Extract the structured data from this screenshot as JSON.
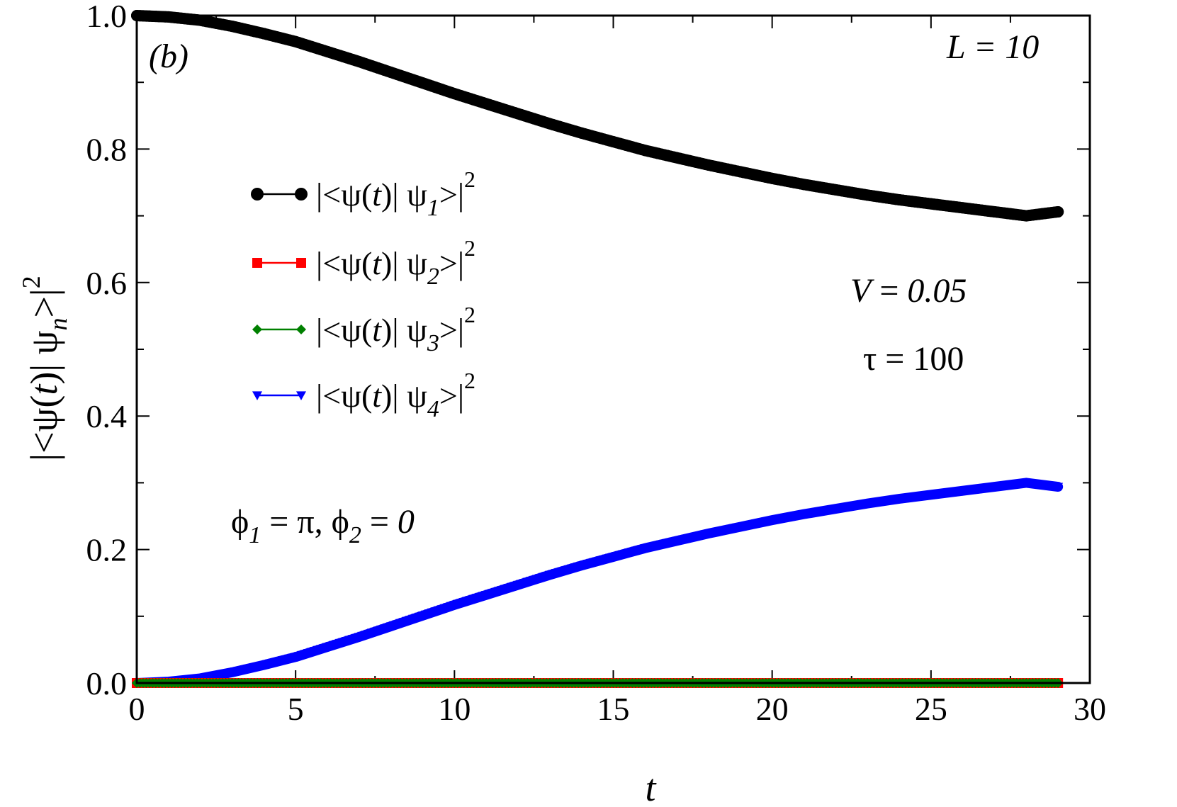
{
  "chart_data": {
    "type": "scatter",
    "panel_label": "(b)",
    "xlabel": "t",
    "ylabel": "|<ψ(t)| ψn>|²",
    "xlim": [
      0,
      30
    ],
    "ylim": [
      0,
      1.0
    ],
    "x_ticks": [
      "0",
      "5",
      "10",
      "15",
      "20",
      "25",
      "30"
    ],
    "y_ticks": [
      "0.0",
      "0.2",
      "0.4",
      "0.6",
      "0.8",
      "1.0"
    ],
    "x_minor_step": 2.5,
    "y_minor_step": 0.1,
    "grid": false,
    "legend_position": "upper-left",
    "series": [
      {
        "name": "|<ψ(t)| ψ1>|²",
        "color": "#000000",
        "marker": "circle",
        "x": [
          0,
          1,
          2,
          3,
          4,
          5,
          6,
          7,
          8,
          9,
          10,
          11,
          12,
          13,
          14,
          15,
          16,
          17,
          18,
          19,
          20,
          21,
          22,
          23,
          24,
          25,
          26,
          27,
          28,
          29
        ],
        "y": [
          1.0,
          0.998,
          0.993,
          0.984,
          0.973,
          0.961,
          0.946,
          0.931,
          0.915,
          0.899,
          0.883,
          0.868,
          0.853,
          0.838,
          0.824,
          0.811,
          0.798,
          0.787,
          0.776,
          0.766,
          0.756,
          0.747,
          0.739,
          0.731,
          0.724,
          0.718,
          0.712,
          0.706,
          0.7,
          0.706
        ]
      },
      {
        "name": "|<ψ(t)| ψ2>|²",
        "color": "#ff0000",
        "marker": "square",
        "x": [
          0,
          1,
          2,
          3,
          4,
          5,
          6,
          7,
          8,
          9,
          10,
          11,
          12,
          13,
          14,
          15,
          16,
          17,
          18,
          19,
          20,
          21,
          22,
          23,
          24,
          25,
          26,
          27,
          28,
          29
        ],
        "y": [
          0,
          0,
          0,
          0,
          0,
          0,
          0,
          0,
          0,
          0,
          0,
          0,
          0,
          0,
          0,
          0,
          0,
          0,
          0,
          0,
          0,
          0,
          0,
          0,
          0,
          0,
          0,
          0,
          0,
          0
        ]
      },
      {
        "name": "|<ψ(t)| ψ3>|²",
        "color": "#008000",
        "marker": "diamond",
        "x": [
          0,
          1,
          2,
          3,
          4,
          5,
          6,
          7,
          8,
          9,
          10,
          11,
          12,
          13,
          14,
          15,
          16,
          17,
          18,
          19,
          20,
          21,
          22,
          23,
          24,
          25,
          26,
          27,
          28,
          29
        ],
        "y": [
          0,
          0,
          0,
          0,
          0,
          0,
          0,
          0,
          0,
          0,
          0,
          0,
          0,
          0,
          0,
          0,
          0,
          0,
          0,
          0,
          0,
          0,
          0,
          0,
          0,
          0,
          0,
          0,
          0,
          0
        ]
      },
      {
        "name": "|<ψ(t)| ψ4>|²",
        "color": "#0000ff",
        "marker": "triangle-down",
        "x": [
          0,
          1,
          2,
          3,
          4,
          5,
          6,
          7,
          8,
          9,
          10,
          11,
          12,
          13,
          14,
          15,
          16,
          17,
          18,
          19,
          20,
          21,
          22,
          23,
          24,
          25,
          26,
          27,
          28,
          29
        ],
        "y": [
          0.0,
          0.002,
          0.007,
          0.016,
          0.027,
          0.039,
          0.054,
          0.069,
          0.085,
          0.101,
          0.117,
          0.132,
          0.147,
          0.162,
          0.176,
          0.189,
          0.202,
          0.213,
          0.224,
          0.234,
          0.244,
          0.253,
          0.261,
          0.269,
          0.276,
          0.282,
          0.288,
          0.294,
          0.3,
          0.294
        ]
      }
    ],
    "annotations": {
      "L_label": "L = 10",
      "V_label": "V = 0.05",
      "tau_label": "τ = 100",
      "phi_label": "ϕ1 = π,  ϕ2 = 0"
    }
  }
}
